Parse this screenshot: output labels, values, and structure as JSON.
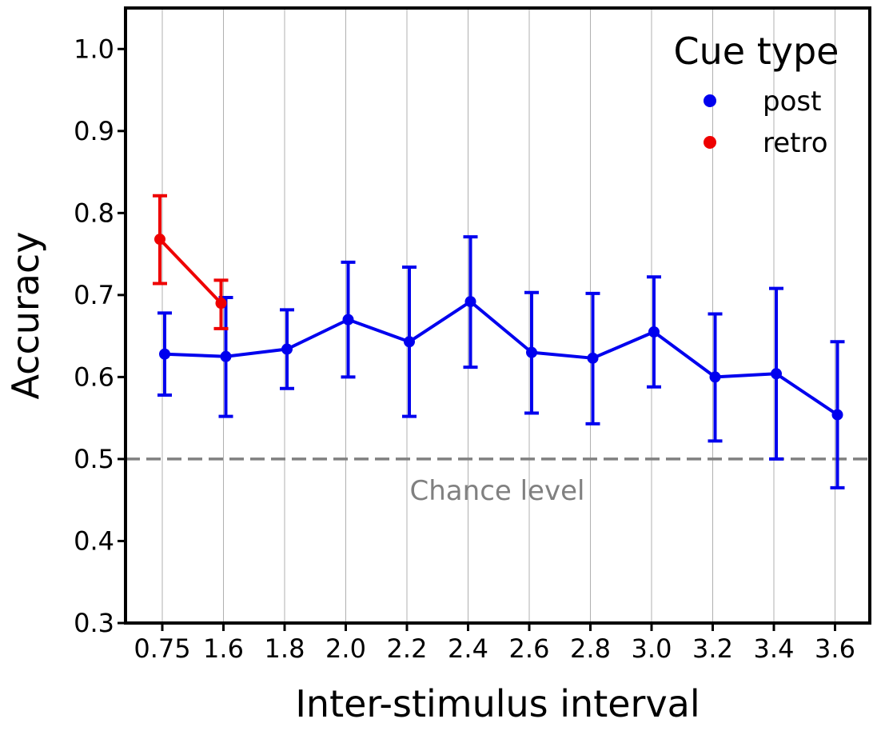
{
  "chart_data": {
    "type": "line",
    "xlabel": "Inter-stimulus interval",
    "ylabel": "Accuracy",
    "ylim": [
      0.3,
      1.05
    ],
    "y_ticks": [
      "0.3",
      "0.4",
      "0.5",
      "0.6",
      "0.7",
      "0.8",
      "0.9",
      "1.0"
    ],
    "categories": [
      "0.75",
      "1.6",
      "1.8",
      "2.0",
      "2.2",
      "2.4",
      "2.6",
      "2.8",
      "3.0",
      "3.2",
      "3.4",
      "3.6"
    ],
    "grid": "vertical",
    "legend": {
      "title": "Cue type",
      "placement": "top-right"
    },
    "series": [
      {
        "name": "post",
        "color": "#0000ee",
        "values": [
          0.628,
          0.625,
          0.634,
          0.67,
          0.643,
          0.692,
          0.63,
          0.623,
          0.655,
          0.6,
          0.604,
          0.554
        ],
        "err_low": [
          0.578,
          0.552,
          0.586,
          0.6,
          0.552,
          0.612,
          0.556,
          0.543,
          0.588,
          0.522,
          0.5,
          0.465
        ],
        "err_high": [
          0.678,
          0.697,
          0.682,
          0.74,
          0.734,
          0.771,
          0.703,
          0.702,
          0.722,
          0.677,
          0.708,
          0.643
        ]
      },
      {
        "name": "retro",
        "color": "#ee0000",
        "values": [
          0.768,
          0.69,
          null,
          null,
          null,
          null,
          null,
          null,
          null,
          null,
          null,
          null
        ],
        "err_low": [
          0.714,
          0.659,
          null,
          null,
          null,
          null,
          null,
          null,
          null,
          null,
          null,
          null
        ],
        "err_high": [
          0.821,
          0.718,
          null,
          null,
          null,
          null,
          null,
          null,
          null,
          null,
          null,
          null
        ]
      }
    ],
    "reference_line": {
      "y": 0.5,
      "label": "Chance level",
      "color": "#808080"
    }
  }
}
